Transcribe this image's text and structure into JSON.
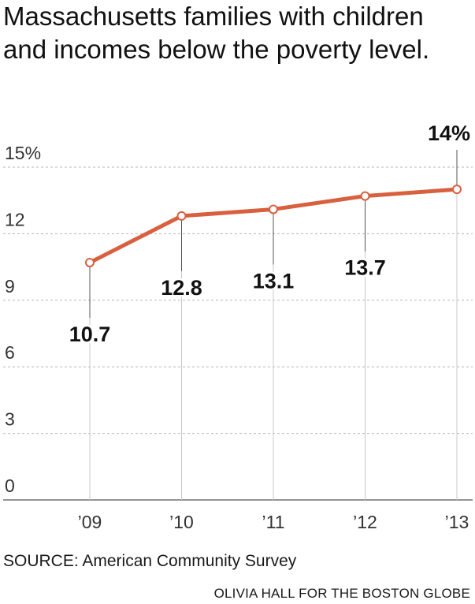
{
  "title": "Massachusetts families with children and incomes below the poverty level.",
  "chart_data": {
    "type": "line",
    "x": [
      "’09",
      "’10",
      "’11",
      "’12",
      "’13"
    ],
    "series": [
      {
        "values": [
          10.7,
          12.8,
          13.1,
          13.7,
          14
        ]
      }
    ],
    "data_labels": [
      "10.7",
      "12.8",
      "13.1",
      "13.7",
      "14%"
    ],
    "y_ticks": [
      0,
      3,
      6,
      9,
      12,
      15
    ],
    "y_tick_labels": [
      "0",
      "3",
      "6",
      "9",
      "12",
      "15%"
    ],
    "ylim": [
      0,
      15
    ],
    "grid": true,
    "line_color": "#d9603f"
  },
  "source": "SOURCE: American Community Survey",
  "credit": "OLIVIA HALL FOR THE BOSTON GLOBE"
}
